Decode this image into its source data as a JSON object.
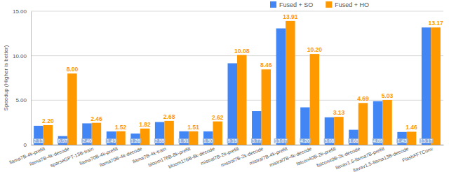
{
  "chart_data": {
    "type": "bar",
    "y_label": "Speedup (Higher is better)",
    "categories": [
      "llama7B-4k-prefill",
      "llama7B-4k-decode",
      "sparseGPT-13B-train",
      "llama70B-4k-prefill",
      "llama70B-4k-decode",
      "llama7B-4k-train",
      "bloom176B-8k-prefill",
      "bloom176B-8k-decode",
      "mistral7B-2k-prefill",
      "mistral7B-2k-decode",
      "mistral7B-4k-prefill",
      "mistral7B-4k-decode",
      "falcon40B-2k-prefill",
      "falcon40B-2k-decode",
      "llavav1.5-llama7B-prefill",
      "llavav1.5-llama13B-decode",
      "FlashFFTConv"
    ],
    "series": [
      {
        "name": "Fused + SO",
        "color": "#4285f4",
        "values": [
          2.13,
          0.97,
          2.4,
          1.49,
          1.26,
          2.55,
          1.51,
          1.5,
          9.15,
          3.77,
          13.07,
          4.2,
          3.08,
          1.68,
          4.89,
          1.43,
          13.17
        ],
        "value_labels": [
          "2.13",
          "0.97",
          "2.40",
          "1.49",
          "1.26",
          "2.55",
          "1.51",
          "1.50",
          "9.15",
          "3.77",
          "13.07",
          "4.20",
          "3.08",
          "1.68",
          "4.89",
          "1.43",
          "13.17"
        ]
      },
      {
        "name": "Fused + HO",
        "color": "#ff9900",
        "values": [
          2.2,
          8.0,
          2.46,
          1.52,
          1.82,
          2.68,
          1.51,
          2.62,
          10.08,
          8.46,
          13.91,
          10.2,
          3.13,
          4.69,
          5.03,
          1.46,
          13.17
        ],
        "value_labels": [
          "2.20",
          "8.00",
          "2.46",
          "1.52",
          "1.82",
          "2.68",
          "1.51",
          "2.62",
          "10.08",
          "8.46",
          "13.91",
          "10.20",
          "3.13",
          "4.69",
          "5.03",
          "1.46",
          "13.17"
        ]
      }
    ],
    "ylim": [
      0,
      15
    ],
    "yticks": [
      0,
      {
        "value": 5,
        "label": "5.00"
      },
      {
        "value": 10,
        "label": "10.00"
      },
      {
        "value": 15,
        "label": "15.00"
      }
    ],
    "grid": true,
    "legend": "top",
    "data_labels": true
  }
}
